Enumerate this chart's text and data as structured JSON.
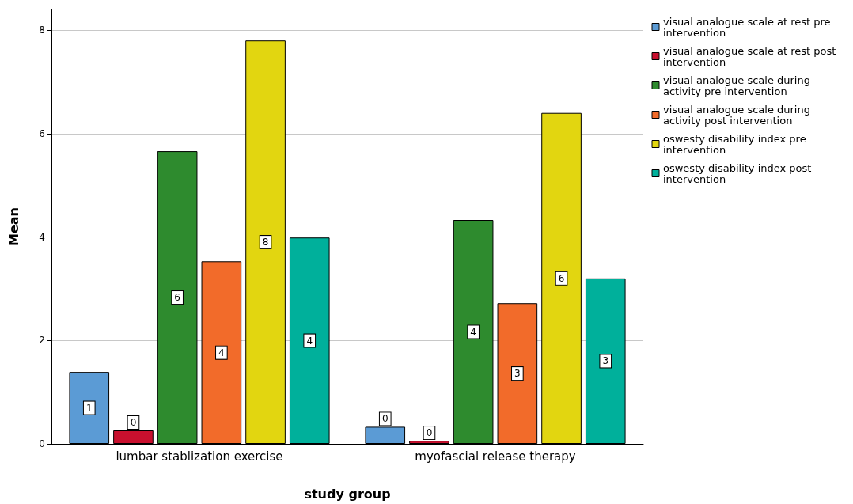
{
  "chart_data": {
    "type": "bar",
    "xlabel": "study group",
    "ylabel": "Mean",
    "categories": [
      "lumbar stablization exercise",
      "myofascial release therapy"
    ],
    "series": [
      {
        "name": "visual analogue scale at rest pre intervention",
        "color": "#5b9bd5",
        "values": [
          1.39,
          0.33
        ],
        "value_labels": [
          "1",
          "0"
        ]
      },
      {
        "name": "visual analogue scale at rest post intervention",
        "color": "#c8102e",
        "values": [
          0.26,
          0.06
        ],
        "value_labels": [
          "0",
          "0"
        ]
      },
      {
        "name": "visual analogue scale during activity pre intervention",
        "color": "#2e8b2e",
        "values": [
          5.66,
          4.33
        ],
        "value_labels": [
          "6",
          "4"
        ]
      },
      {
        "name": "visual analogue scale during activity post intervention",
        "color": "#f26b2a",
        "values": [
          3.53,
          2.72
        ],
        "value_labels": [
          "4",
          "3"
        ]
      },
      {
        "name": "oswesty disability index pre intervention",
        "color": "#e2d610",
        "values": [
          7.8,
          6.4
        ],
        "value_labels": [
          "8",
          "6"
        ]
      },
      {
        "name": "oswesty disability index post intervention",
        "color": "#00b09b",
        "values": [
          3.99,
          3.2
        ],
        "value_labels": [
          "4",
          "3"
        ]
      }
    ],
    "ylim": [
      0,
      8.4
    ],
    "yticks": [
      0,
      2,
      4,
      6,
      8
    ],
    "grid": "y",
    "legend": "top right"
  }
}
